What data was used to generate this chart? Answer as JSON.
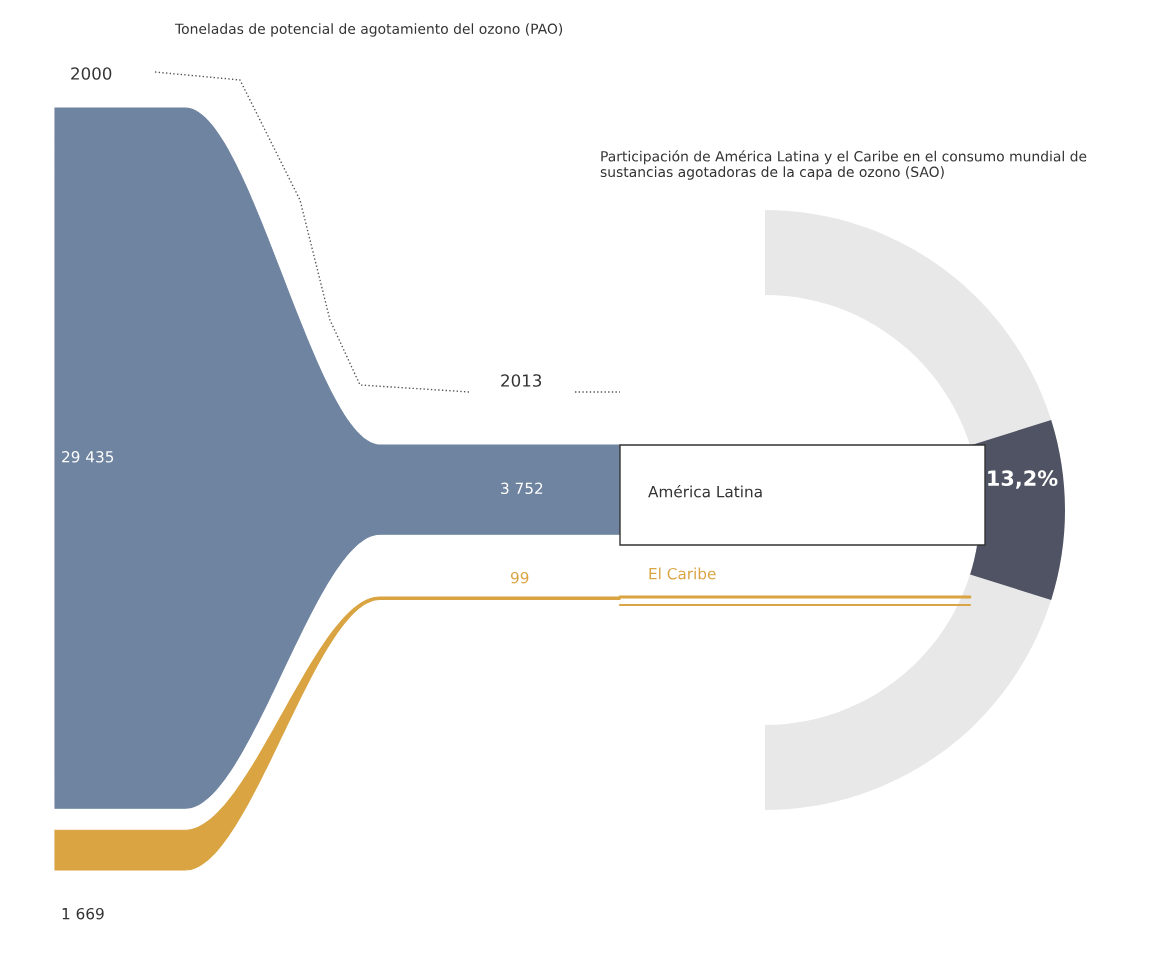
{
  "chart_data": {
    "type": "other",
    "categories": [
      "América Latina",
      "El Caribe"
    ],
    "colors": [
      "#6f84a0",
      "#d9a441"
    ],
    "series": [
      {
        "name": "2000",
        "values": [
          29435,
          1669
        ],
        "value_labels": [
          "29 435",
          "1 669"
        ]
      },
      {
        "name": "2013",
        "values": [
          3752,
          99
        ],
        "value_labels": [
          "3 752",
          "99"
        ]
      }
    ],
    "ylabel": "Toneladas de potencial de agotamiento del ozono (PAO)",
    "annotations": [
      "13,2%",
      "Participación de América Latina y el Caribe en el consumo mundial de sustancias agotadoras de la capa de ozono (SAO)"
    ]
  }
}
